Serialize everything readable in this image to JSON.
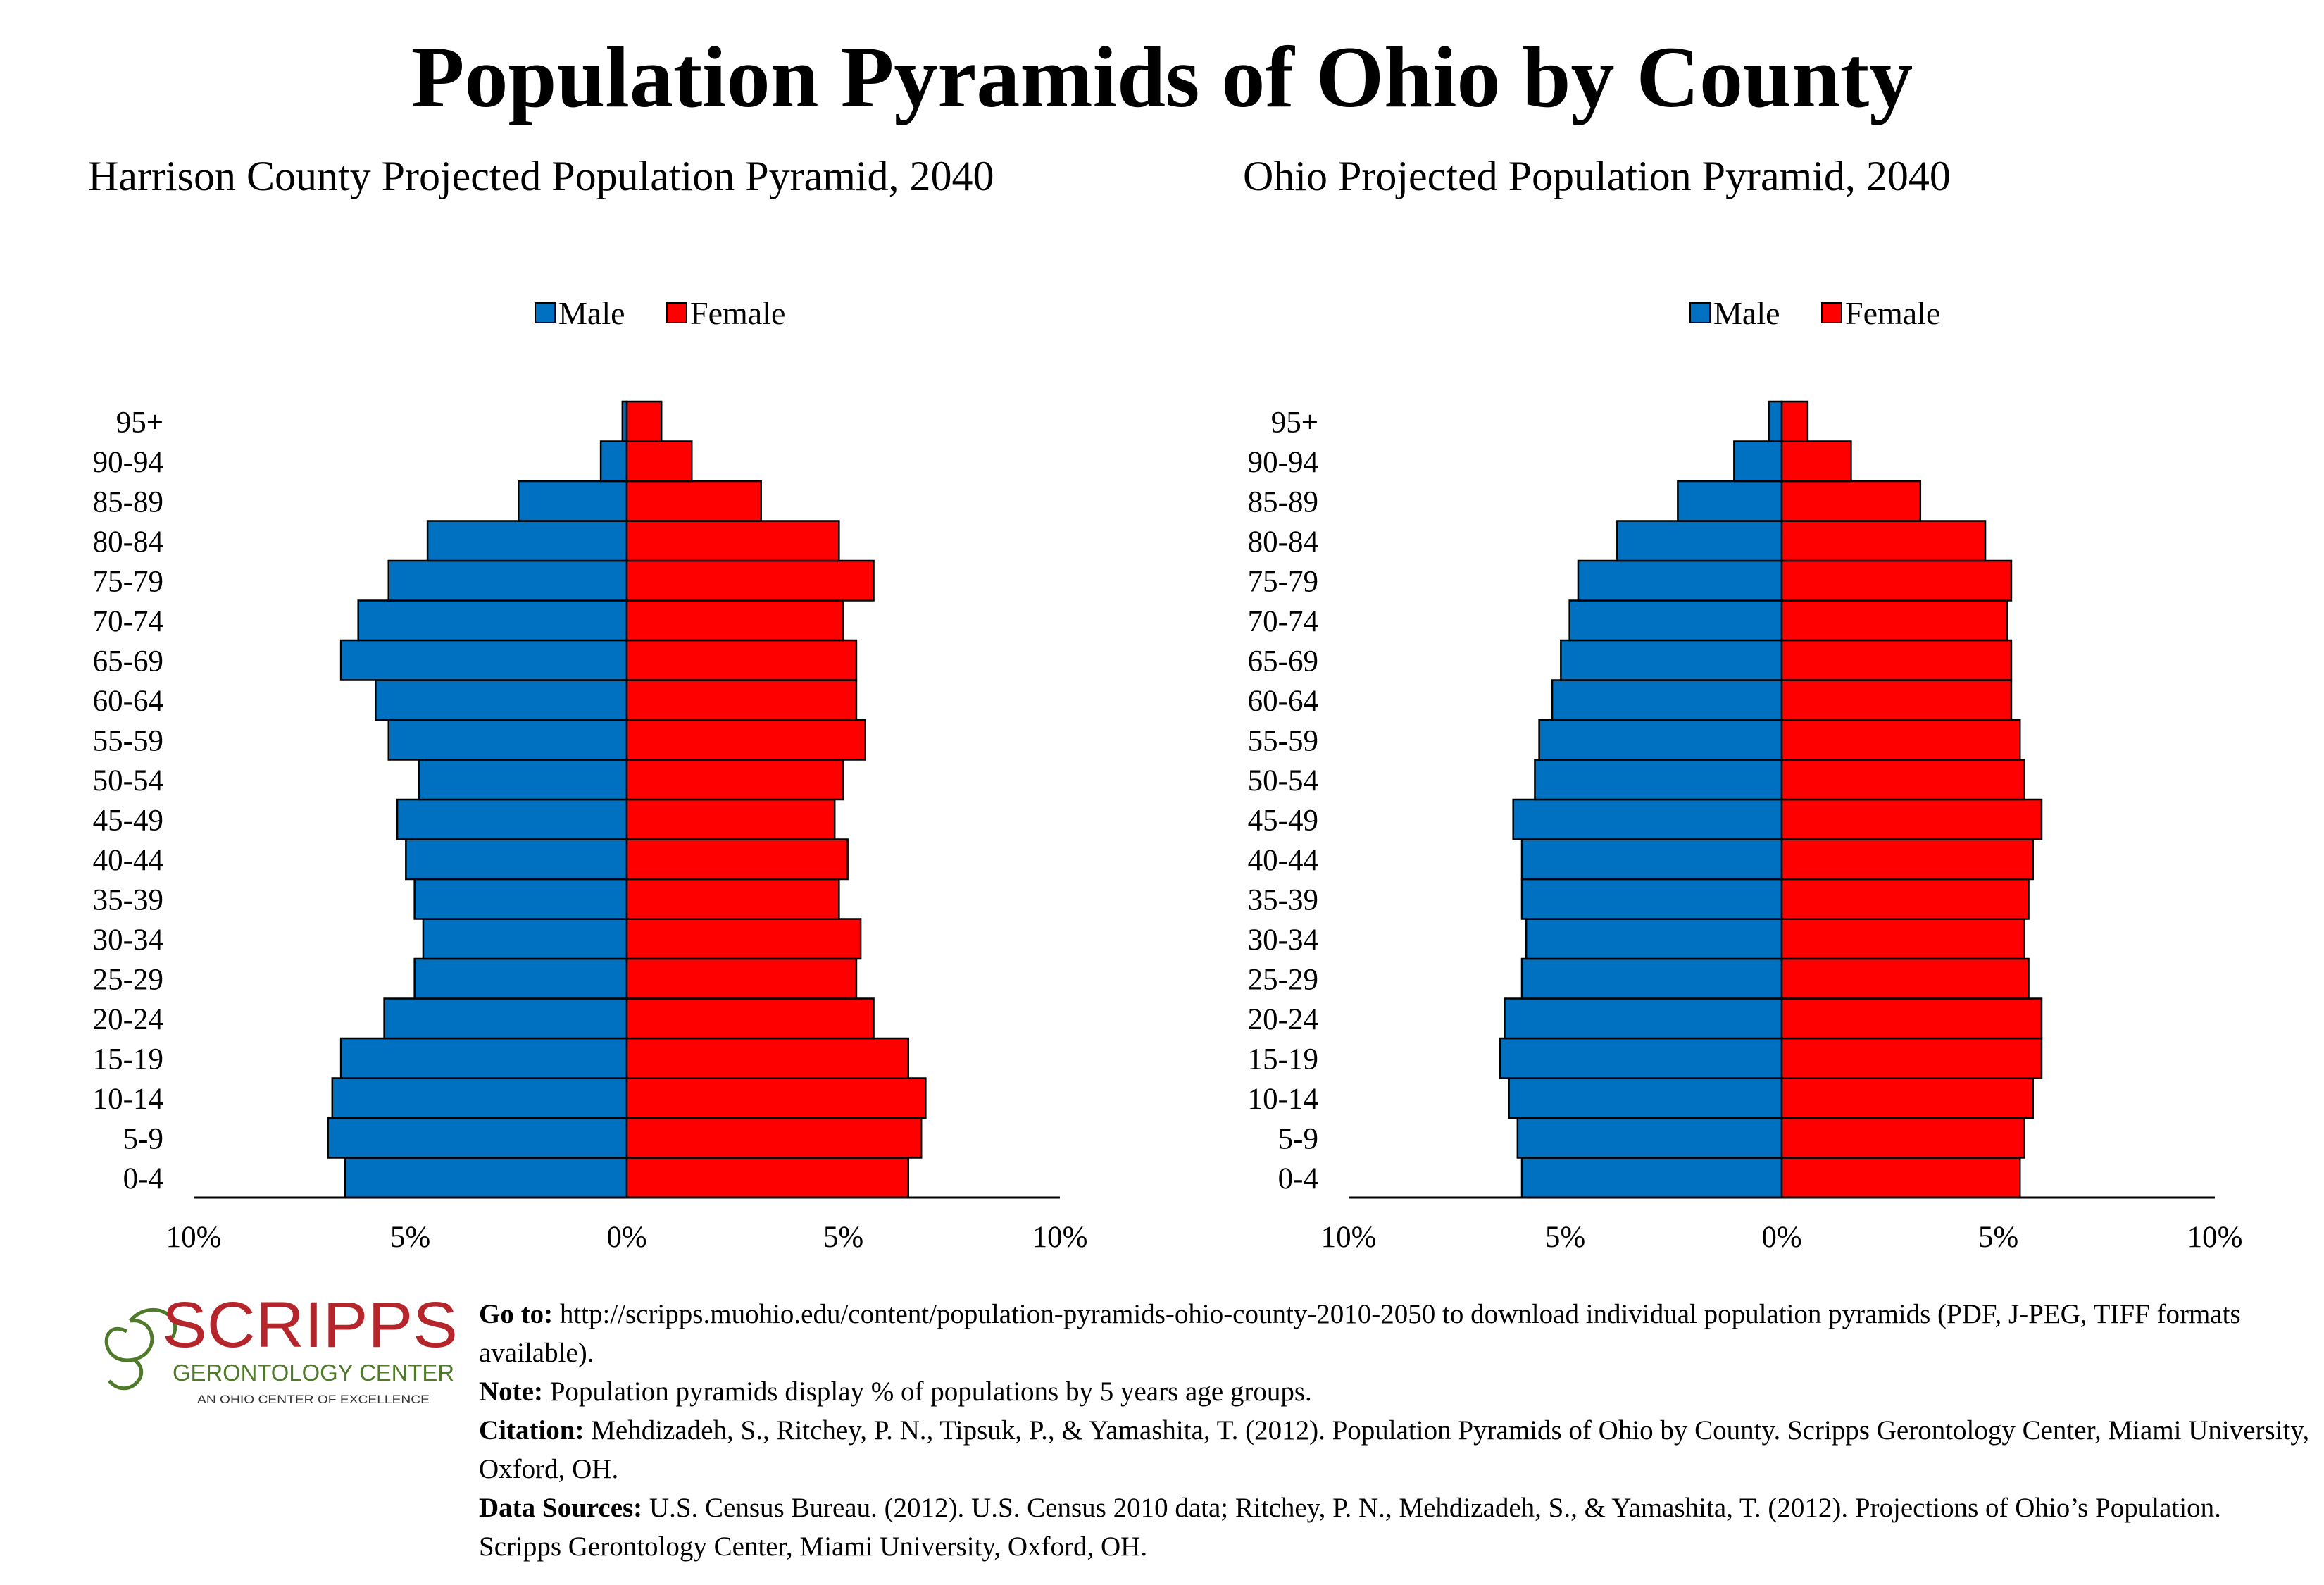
{
  "page": {
    "title": "Population Pyramids of Ohio by County"
  },
  "colors": {
    "male": "#0070C0",
    "female": "#FF0000"
  },
  "chart_data": [
    {
      "type": "bar",
      "orientation": "horizontal-pyramid",
      "title": "Harrison County Projected Population Pyramid, 2040",
      "categories": [
        "0-4",
        "5-9",
        "10-14",
        "15-19",
        "20-24",
        "25-29",
        "30-34",
        "35-39",
        "40-44",
        "45-49",
        "50-54",
        "55-59",
        "60-64",
        "65-69",
        "70-74",
        "75-79",
        "80-84",
        "85-89",
        "90-94",
        "95+"
      ],
      "series": [
        {
          "name": "Male",
          "values": [
            6.5,
            6.9,
            6.8,
            6.6,
            5.6,
            4.9,
            4.7,
            4.9,
            5.1,
            5.3,
            4.8,
            5.5,
            5.8,
            6.6,
            6.2,
            5.5,
            4.6,
            2.5,
            0.6,
            0.1
          ]
        },
        {
          "name": "Female",
          "values": [
            6.5,
            6.8,
            6.9,
            6.5,
            5.7,
            5.3,
            5.4,
            4.9,
            5.1,
            4.8,
            5.0,
            5.5,
            5.3,
            5.3,
            5.0,
            5.7,
            4.9,
            3.1,
            1.5,
            0.8
          ]
        }
      ],
      "x_ticks": [
        "10%",
        "5%",
        "0%",
        "5%",
        "10%"
      ],
      "xlim": [
        -10,
        10
      ],
      "legend": "top-center"
    },
    {
      "type": "bar",
      "orientation": "horizontal-pyramid",
      "title": "Ohio Projected Population Pyramid, 2040",
      "categories": [
        "0-4",
        "5-9",
        "10-14",
        "15-19",
        "20-24",
        "25-29",
        "30-34",
        "35-39",
        "40-44",
        "45-49",
        "50-54",
        "55-59",
        "60-64",
        "65-69",
        "70-74",
        "75-79",
        "80-84",
        "85-89",
        "90-94",
        "95+"
      ],
      "series": [
        {
          "name": "Male",
          "values": [
            6.0,
            6.1,
            6.3,
            6.5,
            6.4,
            6.0,
            5.9,
            6.0,
            6.0,
            6.2,
            5.7,
            5.6,
            5.3,
            5.1,
            4.9,
            4.7,
            3.8,
            2.4,
            1.1,
            0.3
          ]
        },
        {
          "name": "Female",
          "values": [
            5.5,
            5.6,
            5.8,
            6.0,
            6.0,
            5.7,
            5.6,
            5.7,
            5.8,
            6.0,
            5.6,
            5.5,
            5.3,
            5.3,
            5.2,
            5.3,
            4.7,
            3.2,
            1.6,
            0.6
          ]
        }
      ],
      "x_ticks": [
        "10%",
        "5%",
        "0%",
        "5%",
        "10%"
      ],
      "xlim": [
        -10,
        10
      ],
      "legend": "top-center"
    }
  ],
  "logo": {
    "name": "SCRIPPS",
    "subtitle": "GERONTOLOGY CENTER",
    "tagline": "AN OHIO CENTER OF EXCELLENCE"
  },
  "footer": {
    "goto_label": "Go to:",
    "goto_text": " http://scripps.muohio.edu/content/population-pyramids-ohio-county-2010-2050 to download individual population pyramids (PDF, J-PEG, TIFF formats available).",
    "note_label": "Note:",
    "note_text": " Population pyramids display % of populations by 5 years age groups.",
    "citation_label": "Citation:",
    "citation_text": " Mehdizadeh, S., Ritchey, P. N., Tipsuk, P., & Yamashita, T. (2012). Population Pyramids of Ohio by County. Scripps Gerontology Center, Miami University, Oxford, OH.",
    "sources_label": "Data Sources:",
    "sources_text": " U.S. Census Bureau. (2012). U.S. Census 2010 data; Ritchey, P. N., Mehdizadeh, S., & Yamashita, T. (2012). Projections of Ohio’s Population. Scripps Gerontology Center, Miami University, Oxford, OH."
  }
}
